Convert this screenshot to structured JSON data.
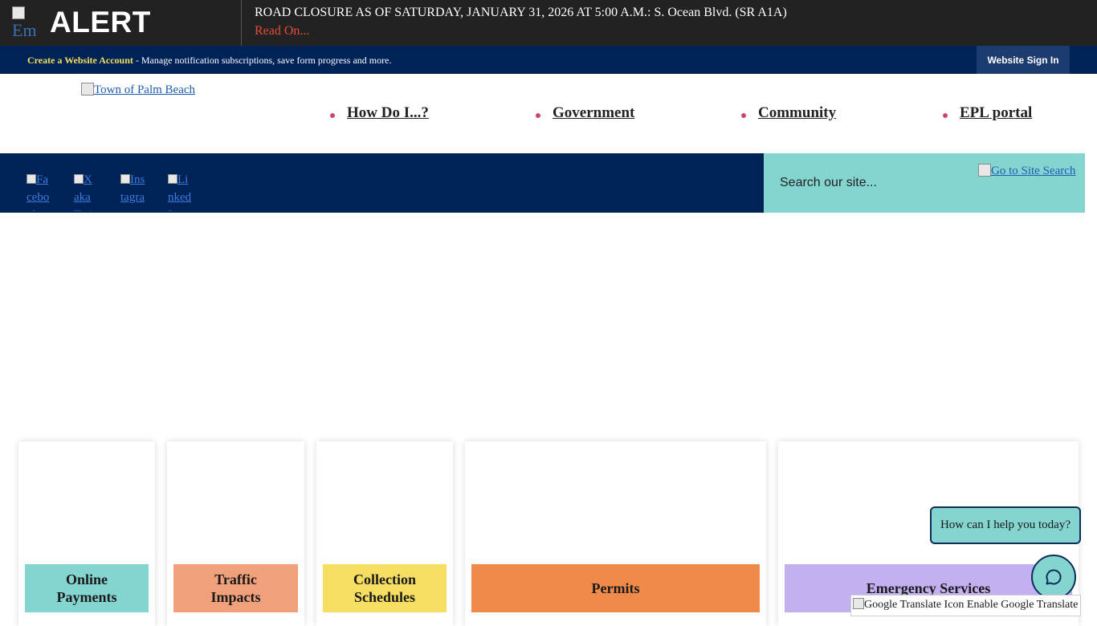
{
  "alert": {
    "icon_alt": "Em",
    "label": "ALERT",
    "title": "ROAD CLOSURE AS OF SATURDAY, JANUARY 31, 2026 AT 5:00 A.M.: S. Ocean Blvd. (SR A1A)",
    "read_on": "Read On..."
  },
  "account_bar": {
    "create_link": "Create a Website Account",
    "description": " - Manage notification subscriptions, save form progress and more.",
    "sign_in": "Website Sign In"
  },
  "header": {
    "logo_alt": "Town of Palm Beach",
    "nav": [
      "How Do I...?",
      "Government",
      "Community",
      "EPL portal"
    ]
  },
  "social": {
    "facebook_alt": "Facebook",
    "x_alt": "X aka Twitter",
    "instagram_alt": "Instagram",
    "linkedin_alt": "LinkedIn"
  },
  "search": {
    "placeholder": "Search our site...",
    "go_alt": "Go to Site Search"
  },
  "quick_links": [
    {
      "label": "Online Payments",
      "color": "#84d4d0"
    },
    {
      "label": "Traffic Impacts",
      "color": "#f0a07a"
    },
    {
      "label": "Collection Schedules",
      "color": "#f5de62"
    },
    {
      "label": "Permits",
      "color": "#f08a4b"
    },
    {
      "label": "Emergency Services",
      "color": "#c2b0f0"
    }
  ],
  "chat": {
    "prompt": "How can I help you today?",
    "icon": "chat-icon"
  },
  "translate": {
    "icon_alt": "Google Translate Icon",
    "label": " Enable Google Translate"
  },
  "colors": {
    "alert_bg": "#222222",
    "navy": "#002357",
    "teal": "#84d4d0",
    "nav_dot": "#c8466f",
    "read_on": "#e8493c"
  }
}
